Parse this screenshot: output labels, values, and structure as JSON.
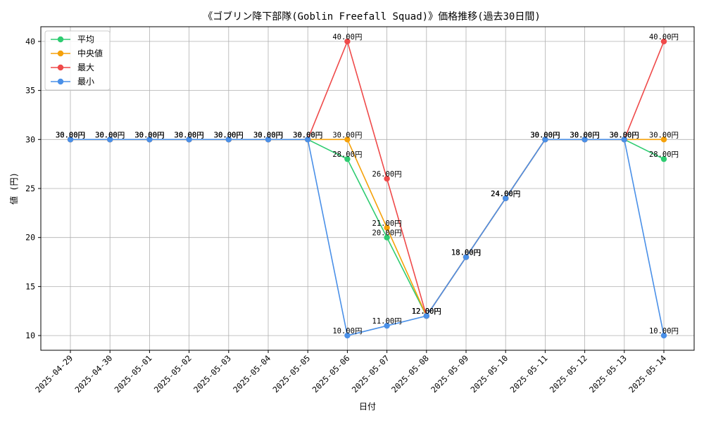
{
  "chart_data": {
    "type": "line",
    "title": "《ゴブリン降下部隊(Goblin Freefall Squad)》価格推移(過去30日間)",
    "xlabel": "日付",
    "ylabel": "値 (円)",
    "categories": [
      "2025-04-29",
      "2025-04-30",
      "2025-05-01",
      "2025-05-02",
      "2025-05-03",
      "2025-05-04",
      "2025-05-05",
      "2025-05-06",
      "2025-05-07",
      "2025-05-08",
      "2025-05-09",
      "2025-05-10",
      "2025-05-11",
      "2025-05-12",
      "2025-05-13",
      "2025-05-14"
    ],
    "ylim": [
      8.5,
      41.5
    ],
    "yticks": [
      10,
      15,
      20,
      25,
      30,
      35,
      40
    ],
    "grid": true,
    "legend_position": "top-left",
    "label_suffix": "円",
    "series": [
      {
        "name": "平均",
        "color": "#2ecc71",
        "values": [
          30,
          30,
          30,
          30,
          30,
          30,
          30,
          28,
          20,
          12,
          18,
          24,
          30,
          30,
          30,
          28
        ]
      },
      {
        "name": "中央値",
        "color": "#f5a10a",
        "values": [
          30,
          30,
          30,
          30,
          30,
          30,
          30,
          30,
          21,
          12,
          18,
          24,
          30,
          30,
          30,
          30
        ]
      },
      {
        "name": "最大",
        "color": "#ef4a4a",
        "values": [
          30,
          30,
          30,
          30,
          30,
          30,
          30,
          40,
          26,
          12,
          18,
          24,
          30,
          30,
          30,
          40
        ]
      },
      {
        "name": "最小",
        "color": "#4a90e8",
        "values": [
          30,
          30,
          30,
          30,
          30,
          30,
          30,
          10,
          11,
          12,
          18,
          24,
          30,
          30,
          30,
          10
        ]
      }
    ]
  }
}
